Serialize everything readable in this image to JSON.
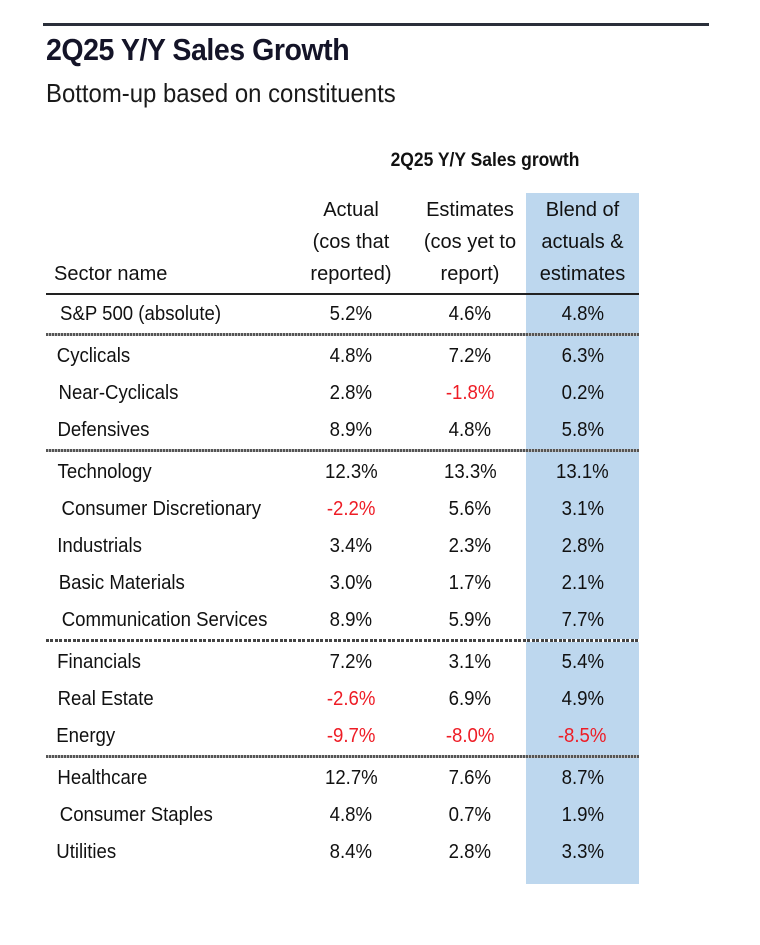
{
  "title": "2Q25 Y/Y Sales Growth",
  "subtitle": "Bottom-up based on constituents",
  "table": {
    "group_header": "2Q25 Y/Y Sales growth",
    "columns": [
      {
        "label_lines": [
          "Sector name"
        ]
      },
      {
        "label_lines": [
          "Actual",
          "(cos that",
          "reported)"
        ]
      },
      {
        "label_lines": [
          "Estimates",
          "(cos yet to",
          "report)"
        ]
      },
      {
        "label_lines": [
          "Blend of",
          "actuals &",
          "estimates"
        ]
      }
    ],
    "highlight_color": "#bdd7ee",
    "negative_color": "#ee1c25",
    "groups": [
      {
        "rows": [
          {
            "sector": "S&P 500 (absolute)",
            "actual": "5.2%",
            "estimates": "4.6%",
            "blend": "4.8%"
          }
        ]
      },
      {
        "rows": [
          {
            "sector": "Cyclicals",
            "actual": "4.8%",
            "estimates": "7.2%",
            "blend": "6.3%"
          },
          {
            "sector": "Near-Cyclicals",
            "actual": "2.8%",
            "estimates": "-1.8%",
            "blend": "0.2%"
          },
          {
            "sector": "Defensives",
            "actual": "8.9%",
            "estimates": "4.8%",
            "blend": "5.8%"
          }
        ]
      },
      {
        "rows": [
          {
            "sector": "Technology",
            "actual": "12.3%",
            "estimates": "13.3%",
            "blend": "13.1%"
          },
          {
            "sector": "Consumer Discretionary",
            "actual": "-2.2%",
            "estimates": "5.6%",
            "blend": "3.1%"
          },
          {
            "sector": "Industrials",
            "actual": "3.4%",
            "estimates": "2.3%",
            "blend": "2.8%"
          },
          {
            "sector": "Basic Materials",
            "actual": "3.0%",
            "estimates": "1.7%",
            "blend": "2.1%"
          },
          {
            "sector": "Communication Services",
            "actual": "8.9%",
            "estimates": "5.9%",
            "blend": "7.7%"
          }
        ]
      },
      {
        "rows": [
          {
            "sector": "Financials",
            "actual": "7.2%",
            "estimates": "3.1%",
            "blend": "5.4%"
          },
          {
            "sector": "Real Estate",
            "actual": "-2.6%",
            "estimates": "6.9%",
            "blend": "4.9%"
          },
          {
            "sector": "Energy",
            "actual": "-9.7%",
            "estimates": "-8.0%",
            "blend": "-8.5%"
          }
        ]
      },
      {
        "rows": [
          {
            "sector": "Healthcare",
            "actual": "12.7%",
            "estimates": "7.6%",
            "blend": "8.7%"
          },
          {
            "sector": "Consumer Staples",
            "actual": "4.8%",
            "estimates": "0.7%",
            "blend": "1.9%"
          },
          {
            "sector": "Utilities",
            "actual": "8.4%",
            "estimates": "2.8%",
            "blend": "3.3%"
          }
        ]
      }
    ]
  }
}
